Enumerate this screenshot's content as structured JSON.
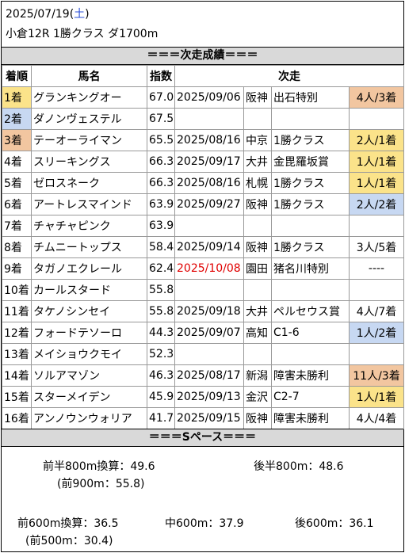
{
  "header": {
    "date": "2025/07/19",
    "weekday_open": "(",
    "weekday": "土",
    "weekday_close": ")",
    "race": "小倉12R 1勝クラス ダ1700m"
  },
  "section_next": "＝＝＝次走成績＝＝＝",
  "columns": [
    "着順",
    "馬名",
    "指数",
    "次走"
  ],
  "rows": [
    {
      "rank": "1着",
      "name": "グランキングオー",
      "index": "67.0",
      "date": "2025/09/06",
      "track": "阪神",
      "race": "出石特別",
      "result": "4人/3着",
      "rank_color": "gold",
      "result_color": "bronze",
      "date_red": false
    },
    {
      "rank": "2着",
      "name": "ダノンヴェステル",
      "index": "67.5",
      "date": "",
      "track": "",
      "race": "",
      "result": "",
      "rank_color": "blue",
      "result_color": "",
      "date_red": false
    },
    {
      "rank": "3着",
      "name": "テーオーライマン",
      "index": "65.5",
      "date": "2025/08/16",
      "track": "中京",
      "race": "1勝クラス",
      "result": "2人/1着",
      "rank_color": "bronze",
      "result_color": "gold",
      "date_red": false
    },
    {
      "rank": "4着",
      "name": "スリーキングス",
      "index": "66.3",
      "date": "2025/09/17",
      "track": "大井",
      "race": "金毘羅坂賞",
      "result": "1人/1着",
      "rank_color": "",
      "result_color": "gold",
      "date_red": false
    },
    {
      "rank": "5着",
      "name": "ゼロスネーク",
      "index": "66.3",
      "date": "2025/08/16",
      "track": "札幌",
      "race": "1勝クラス",
      "result": "1人/1着",
      "rank_color": "",
      "result_color": "gold",
      "date_red": false
    },
    {
      "rank": "6着",
      "name": "アートレスマインド",
      "index": "63.9",
      "date": "2025/09/27",
      "track": "阪神",
      "race": "1勝クラス",
      "result": "2人/2着",
      "rank_color": "",
      "result_color": "blue",
      "date_red": false
    },
    {
      "rank": "7着",
      "name": "チャチャピンク",
      "index": "63.9",
      "date": "",
      "track": "",
      "race": "",
      "result": "",
      "rank_color": "",
      "result_color": "",
      "date_red": false
    },
    {
      "rank": "8着",
      "name": "チムニートップス",
      "index": "58.4",
      "date": "2025/09/14",
      "track": "阪神",
      "race": "1勝クラス",
      "result": "3人/5着",
      "rank_color": "",
      "result_color": "",
      "date_red": false
    },
    {
      "rank": "9着",
      "name": "タガノエクレール",
      "index": "62.4",
      "date": "2025/10/08",
      "track": "園田",
      "race": "猪名川特別",
      "result": "----",
      "rank_color": "",
      "result_color": "",
      "date_red": true
    },
    {
      "rank": "10着",
      "name": "カールスタード",
      "index": "55.8",
      "date": "",
      "track": "",
      "race": "",
      "result": "",
      "rank_color": "",
      "result_color": "",
      "date_red": false
    },
    {
      "rank": "11着",
      "name": "タケノシンセイ",
      "index": "55.8",
      "date": "2025/09/18",
      "track": "大井",
      "race": "ペルセウス賞",
      "result": "4人/7着",
      "rank_color": "",
      "result_color": "",
      "date_red": false
    },
    {
      "rank": "12着",
      "name": "フォードテソーロ",
      "index": "44.3",
      "date": "2025/09/07",
      "track": "高知",
      "race": "C1-6",
      "result": "1人/2着",
      "rank_color": "",
      "result_color": "blue",
      "date_red": false
    },
    {
      "rank": "13着",
      "name": "メイショウクモイ",
      "index": "52.3",
      "date": "",
      "track": "",
      "race": "",
      "result": "",
      "rank_color": "",
      "result_color": "",
      "date_red": false
    },
    {
      "rank": "14着",
      "name": "ソルアマゾン",
      "index": "46.3",
      "date": "2025/08/17",
      "track": "新潟",
      "race": "障害未勝利",
      "result": "11人/3着",
      "rank_color": "",
      "result_color": "bronze",
      "date_red": false
    },
    {
      "rank": "15着",
      "name": "スターメイデン",
      "index": "45.9",
      "date": "2025/09/13",
      "track": "金沢",
      "race": "C2-7",
      "result": "1人/1着",
      "rank_color": "",
      "result_color": "gold",
      "date_red": false
    },
    {
      "rank": "16着",
      "name": "アンノウンウォリア",
      "index": "41.7",
      "date": "2025/09/15",
      "track": "阪神",
      "race": "障害未勝利",
      "result": "4人/4着",
      "rank_color": "",
      "result_color": "",
      "date_red": false
    }
  ],
  "section_pace": "＝＝＝Sペース＝＝＝",
  "pace": {
    "first_half": "前半800m換算：49.6",
    "second_half": "後半800m：48.6",
    "first_900": "(前900m：55.8)",
    "first_600": "前600m換算：36.5",
    "mid_600": "中600m：37.9",
    "last_600": "後600m：36.1",
    "first_500": "(前500m：30.4)"
  },
  "colors": {
    "gold": "#fbe38a",
    "blue": "#c7d8f2",
    "bronze": "#f2c6a0",
    "red_date": "#e00000",
    "weekday": "#2a4fd8"
  }
}
